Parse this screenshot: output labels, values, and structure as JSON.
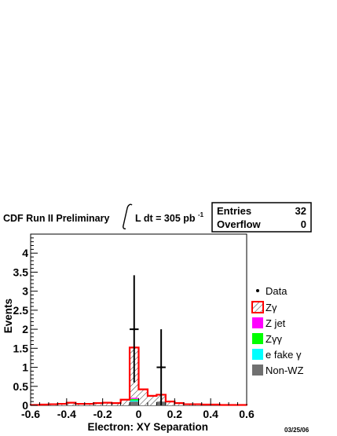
{
  "header": {
    "collab": "CDF Run II Preliminary",
    "lumi_prefix": "L dt = 305 pb",
    "lumi_exp": "-1"
  },
  "stats_box": {
    "entries_label": "Entries",
    "entries_value": "32",
    "overflow_label": "Overflow",
    "overflow_value": "0"
  },
  "date_stamp": "03/25/06",
  "chart_data": {
    "type": "bar",
    "title": "",
    "xlabel": "Electron: XY Separation",
    "ylabel": "Events",
    "xlim": [
      -0.6,
      0.6
    ],
    "ylim": [
      0,
      4.5
    ],
    "bin_edges": [
      -0.6,
      -0.55,
      -0.5,
      -0.45,
      -0.4,
      -0.35,
      -0.3,
      -0.25,
      -0.2,
      -0.15,
      -0.1,
      -0.05,
      0.0,
      0.05,
      0.1,
      0.15,
      0.2,
      0.25,
      0.3,
      0.35,
      0.4,
      0.45,
      0.5,
      0.55,
      0.6
    ],
    "x_ticks": [
      -0.6,
      -0.4,
      -0.2,
      0,
      0.2,
      0.4,
      0.6
    ],
    "x_tick_labels": [
      "-0.6",
      "-0.4",
      "-0.2",
      "0",
      "0.2",
      "0.4",
      "0.6"
    ],
    "y_ticks": [
      0,
      0.5,
      1,
      1.5,
      2,
      2.5,
      3,
      3.5,
      4
    ],
    "y_tick_labels": [
      "0",
      "0.5",
      "1",
      "1.5",
      "2",
      "2.5",
      "3",
      "3.5",
      "4"
    ],
    "series": [
      {
        "name": "Zγ",
        "style": "hatch",
        "color": "#ff0000",
        "values": [
          0.01,
          0.02,
          0.03,
          0.04,
          0.07,
          0.04,
          0.04,
          0.06,
          0.07,
          0.06,
          0.15,
          1.32,
          0.42,
          0.25,
          0.18,
          0.1,
          0.06,
          0.03,
          0.03,
          0.02,
          0.02,
          0.01,
          0.01,
          0.01
        ]
      },
      {
        "name": "Z jet",
        "style": "fill",
        "color": "#ff00ff",
        "values": [
          0,
          0,
          0,
          0,
          0,
          0,
          0,
          0,
          0,
          0,
          0,
          0.03,
          0,
          0,
          0,
          0,
          0,
          0,
          0,
          0,
          0,
          0,
          0,
          0
        ]
      },
      {
        "name": "Zγγ",
        "style": "fill",
        "color": "#00ff00",
        "values": [
          0,
          0,
          0,
          0,
          0,
          0,
          0,
          0,
          0,
          0,
          0,
          0.04,
          0,
          0,
          0,
          0,
          0,
          0,
          0,
          0,
          0,
          0,
          0,
          0
        ]
      },
      {
        "name": "e fake γ",
        "style": "fill",
        "color": "#00ffff",
        "values": [
          0,
          0,
          0,
          0,
          0,
          0,
          0,
          0,
          0,
          0,
          0,
          0.03,
          0,
          0,
          0,
          0,
          0,
          0,
          0,
          0,
          0,
          0,
          0,
          0
        ]
      },
      {
        "name": "Non-WZ",
        "style": "fill",
        "color": "#707070",
        "values": [
          0,
          0,
          0,
          0,
          0,
          0,
          0,
          0,
          0,
          0,
          0,
          0.1,
          0,
          0,
          0.1,
          0,
          0,
          0,
          0,
          0,
          0,
          0,
          0,
          0
        ]
      }
    ],
    "data_points": {
      "name": "Data",
      "x": [
        -0.025,
        0.125
      ],
      "y": [
        2,
        1
      ],
      "err_low": [
        1.4,
        1.0
      ],
      "err_high": [
        1.42,
        1.0
      ],
      "bin_half_width": 0.025
    },
    "legend_position": "right"
  }
}
